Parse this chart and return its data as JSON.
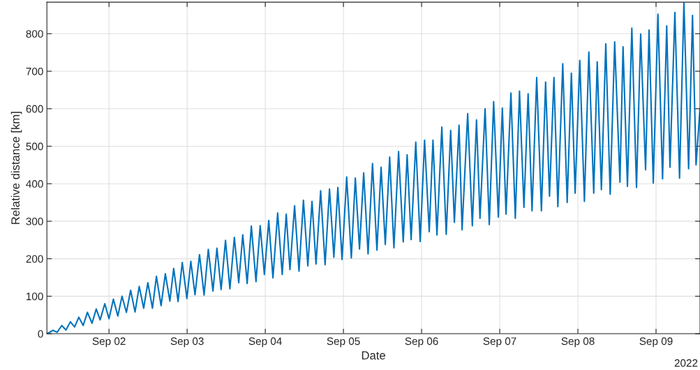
{
  "chart_data": {
    "type": "line",
    "xlabel": "Date",
    "ylabel": "Relative distance [km]",
    "annotations": [
      "2022"
    ],
    "x": [
      "2022-09-01T04:56",
      "2022-09-01T06:48",
      "2022-09-01T08:05",
      "2022-09-01T09:30",
      "2022-09-01T10:47",
      "2022-09-01T12:09",
      "2022-09-01T13:26",
      "2022-09-01T14:44",
      "2022-09-01T16:05",
      "2022-09-01T17:22",
      "2022-09-01T18:48",
      "2022-09-01T20:05",
      "2022-09-01T21:17",
      "2022-09-01T22:43",
      "2022-09-02T00:00",
      "2022-09-02T01:21",
      "2022-09-02T02:43",
      "2022-09-02T04:00",
      "2022-09-02T05:21",
      "2022-09-02T06:39",
      "2022-09-02T08:00",
      "2022-09-02T09:17",
      "2022-09-02T10:39",
      "2022-09-02T11:56",
      "2022-09-02T13:21",
      "2022-09-02T14:34",
      "2022-09-02T16:00",
      "2022-09-02T17:18",
      "2022-09-02T18:42",
      "2022-09-02T19:52",
      "2022-09-02T21:13",
      "2022-09-02T22:30",
      "2022-09-02T23:56",
      "2022-09-03T01:08",
      "2022-09-03T02:25",
      "2022-09-03T03:48",
      "2022-09-03T05:12",
      "2022-09-03T06:30",
      "2022-09-03T07:56",
      "2022-09-03T09:09",
      "2022-09-03T10:26",
      "2022-09-03T11:47",
      "2022-09-03T13:08",
      "2022-09-03T14:30",
      "2022-09-03T15:51",
      "2022-09-03T17:05",
      "2022-09-03T18:26",
      "2022-09-03T19:43",
      "2022-09-03T21:09",
      "2022-09-03T22:26",
      "2022-09-03T23:43",
      "2022-09-04T01:04",
      "2022-09-04T02:21",
      "2022-09-04T03:48",
      "2022-09-04T05:12",
      "2022-09-04T06:26",
      "2022-09-04T07:34",
      "2022-09-04T09:00",
      "2022-09-04T10:21",
      "2022-09-04T11:43",
      "2022-09-04T13:04",
      "2022-09-04T14:21",
      "2022-09-04T15:35",
      "2022-09-04T17:00",
      "2022-09-04T18:22",
      "2022-09-04T19:43",
      "2022-09-04T21:04",
      "2022-09-04T22:17",
      "2022-09-04T23:34",
      "2022-09-05T01:00",
      "2022-09-05T02:25",
      "2022-09-05T03:39",
      "2022-09-05T04:56",
      "2022-09-05T06:13",
      "2022-09-05T07:34",
      "2022-09-05T08:56",
      "2022-09-05T10:17",
      "2022-09-05T11:34",
      "2022-09-05T12:51",
      "2022-09-05T14:12",
      "2022-09-05T15:30",
      "2022-09-05T16:56",
      "2022-09-05T18:22",
      "2022-09-05T19:34",
      "2022-09-05T20:47",
      "2022-09-05T22:13",
      "2022-09-05T23:34",
      "2022-09-06T00:55",
      "2022-09-06T02:21",
      "2022-09-06T03:30",
      "2022-09-06T04:43",
      "2022-09-06T06:13",
      "2022-09-06T07:34",
      "2022-09-06T08:56",
      "2022-09-06T10:04",
      "2022-09-06T11:30",
      "2022-09-06T12:26",
      "2022-09-06T14:09",
      "2022-09-06T15:35",
      "2022-09-06T16:52",
      "2022-09-06T17:56",
      "2022-09-06T19:30",
      "2022-09-06T20:47",
      "2022-09-06T22:08",
      "2022-09-06T23:34",
      "2022-09-07T00:48",
      "2022-09-07T01:56",
      "2022-09-07T03:26",
      "2022-09-07T04:47",
      "2022-09-07T06:04",
      "2022-09-07T07:26",
      "2022-09-07T08:43",
      "2022-09-07T09:55",
      "2022-09-07T11:21",
      "2022-09-07T12:48",
      "2022-09-07T14:05",
      "2022-09-07T15:17",
      "2022-09-07T16:39",
      "2022-09-07T17:51",
      "2022-09-07T19:21",
      "2022-09-07T20:43",
      "2022-09-07T22:00",
      "2022-09-07T23:09",
      "2022-09-08T00:35",
      "2022-09-08T02:00",
      "2022-09-08T03:22",
      "2022-09-08T04:52",
      "2022-09-08T05:56",
      "2022-09-08T07:13",
      "2022-09-08T08:34",
      "2022-09-08T09:55",
      "2022-09-08T11:18",
      "2022-09-08T12:55",
      "2022-09-08T13:52",
      "2022-09-08T15:13",
      "2022-09-08T16:34",
      "2022-09-08T18:00",
      "2022-09-08T19:17",
      "2022-09-08T20:47",
      "2022-09-08T21:51",
      "2022-09-08T23:09",
      "2022-09-09T00:35",
      "2022-09-09T02:00",
      "2022-09-09T03:17",
      "2022-09-09T04:17",
      "2022-09-09T05:47",
      "2022-09-09T07:13",
      "2022-09-09T08:34",
      "2022-09-09T10:00",
      "2022-09-09T11:12",
      "2022-09-09T12:17",
      "2022-09-09T13:30"
    ],
    "series": [
      {
        "color": "#0072bd",
        "values": [
          0,
          9,
          4,
          22,
          10,
          32,
          18,
          44,
          22,
          57,
          28,
          66,
          37,
          80,
          40,
          92,
          47,
          100,
          57,
          116,
          58,
          126,
          68,
          136,
          68,
          153,
          75,
          160,
          87,
          174,
          86,
          190,
          94,
          193,
          104,
          211,
          103,
          225,
          114,
          228,
          118,
          249,
          120,
          257,
          136,
          264,
          134,
          287,
          139,
          288,
          158,
          302,
          149,
          322,
          158,
          319,
          171,
          341,
          167,
          356,
          181,
          353,
          186,
          381,
          184,
          386,
          204,
          390,
          198,
          418,
          202,
          415,
          226,
          429,
          213,
          454,
          223,
          444,
          238,
          471,
          229,
          486,
          245,
          477,
          251,
          511,
          246,
          516,
          272,
          516,
          263,
          551,
          265,
          542,
          297,
          556,
          277,
          587,
          288,
          570,
          308,
          600,
          291,
          619,
          311,
          602,
          319,
          642,
          308,
          647,
          337,
          640,
          328,
          683,
          328,
          671,
          367,
          683,
          339,
          720,
          350,
          695,
          375,
          729,
          353,
          751,
          375,
          725,
          384,
          773,
          372,
          778,
          404,
          765,
          393,
          815,
          390,
          799,
          437,
          810,
          402,
          852,
          413,
          821,
          444,
          857,
          415,
          883,
          440,
          849,
          450,
          600
        ]
      }
    ],
    "xlim": [
      "2022-09-01T04:56",
      "2022-09-09T13:30"
    ],
    "xticks": [
      {
        "value": "2022-09-02",
        "label": "Sep 02"
      },
      {
        "value": "2022-09-03",
        "label": "Sep 03"
      },
      {
        "value": "2022-09-04",
        "label": "Sep 04"
      },
      {
        "value": "2022-09-05",
        "label": "Sep 05"
      },
      {
        "value": "2022-09-06",
        "label": "Sep 06"
      },
      {
        "value": "2022-09-07",
        "label": "Sep 07"
      },
      {
        "value": "2022-09-08",
        "label": "Sep 08"
      },
      {
        "value": "2022-09-09",
        "label": "Sep 09"
      }
    ],
    "ylim": [
      0,
      884
    ],
    "yticks": [
      0,
      100,
      200,
      300,
      400,
      500,
      600,
      700,
      800
    ],
    "grid": true,
    "marker": "none",
    "line_style": "solid"
  }
}
